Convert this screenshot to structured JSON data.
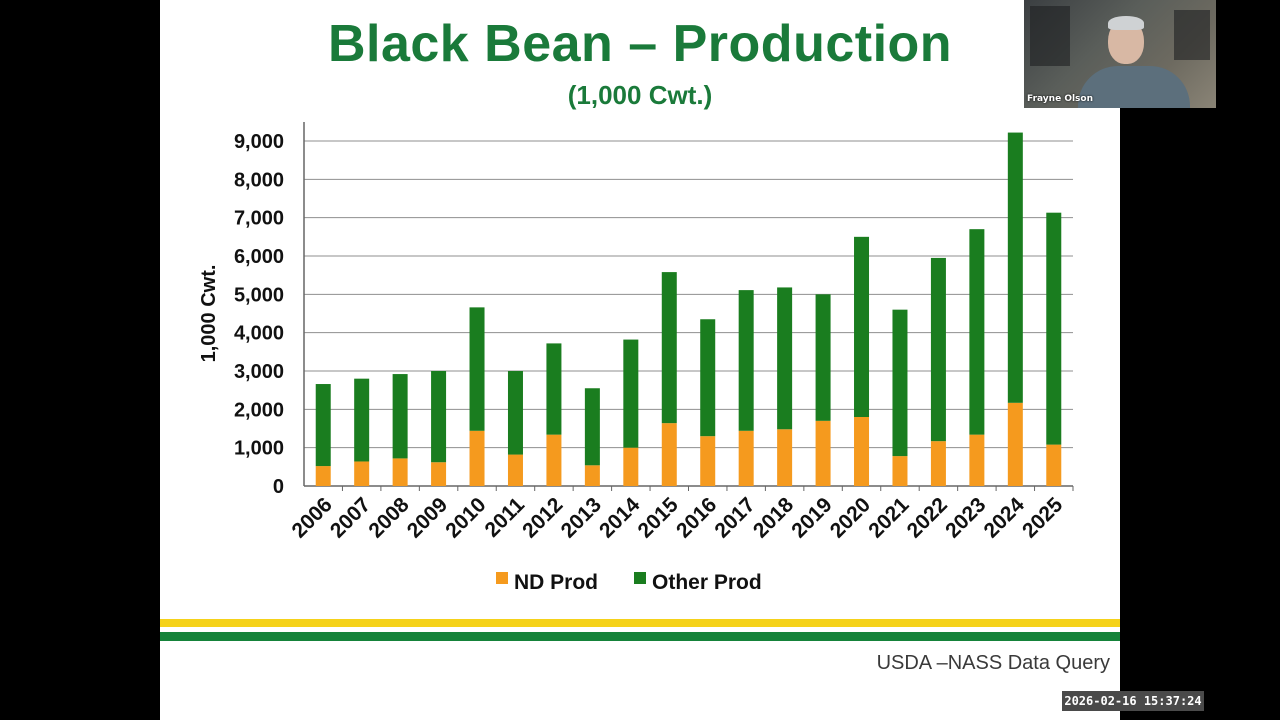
{
  "slide": {
    "title": "Black Bean – Production",
    "subtitle": "(1,000 Cwt.)",
    "source": "USDA –NASS Data Query"
  },
  "colors": {
    "title_green": "#1a7a3a",
    "nd_orange": "#f59a1e",
    "other_green": "#1a7d1f",
    "stripe_yellow": "#f5d21a",
    "stripe_green": "#15833a"
  },
  "video": {
    "participant_name": "Frayne Olson"
  },
  "timestamp": "2026-02-16  15:37:24",
  "chart_data": {
    "type": "bar",
    "stacked": true,
    "title": "Black Bean – Production",
    "subtitle": "(1,000 Cwt.)",
    "ylabel": "1,000 Cwt.",
    "xlabel": "",
    "ylim": [
      0,
      9000
    ],
    "yticks": [
      0,
      1000,
      2000,
      3000,
      4000,
      5000,
      6000,
      7000,
      8000,
      9000
    ],
    "ytick_labels": [
      "0",
      "1,000",
      "2,000",
      "3,000",
      "4,000",
      "5,000",
      "6,000",
      "7,000",
      "8,000",
      "9,000"
    ],
    "grid": true,
    "legend_position": "bottom",
    "categories": [
      "2006",
      "2007",
      "2008",
      "2009",
      "2010",
      "2011",
      "2012",
      "2013",
      "2014",
      "2015",
      "2016",
      "2017",
      "2018",
      "2019",
      "2020",
      "2021",
      "2022",
      "2023",
      "2024",
      "2025"
    ],
    "series": [
      {
        "name": "ND Prod",
        "color": "#f59a1e",
        "values": [
          520,
          640,
          720,
          620,
          1440,
          820,
          1340,
          540,
          1000,
          1640,
          1300,
          1440,
          1480,
          1700,
          1800,
          780,
          1170,
          1340,
          2170,
          1080
        ]
      },
      {
        "name": "Other Prod",
        "color": "#1a7d1f",
        "values": [
          2140,
          2160,
          2200,
          2380,
          3220,
          2180,
          2380,
          2010,
          2820,
          3940,
          3050,
          3670,
          3700,
          3300,
          4700,
          3820,
          4780,
          5360,
          7050,
          6050
        ]
      }
    ]
  }
}
